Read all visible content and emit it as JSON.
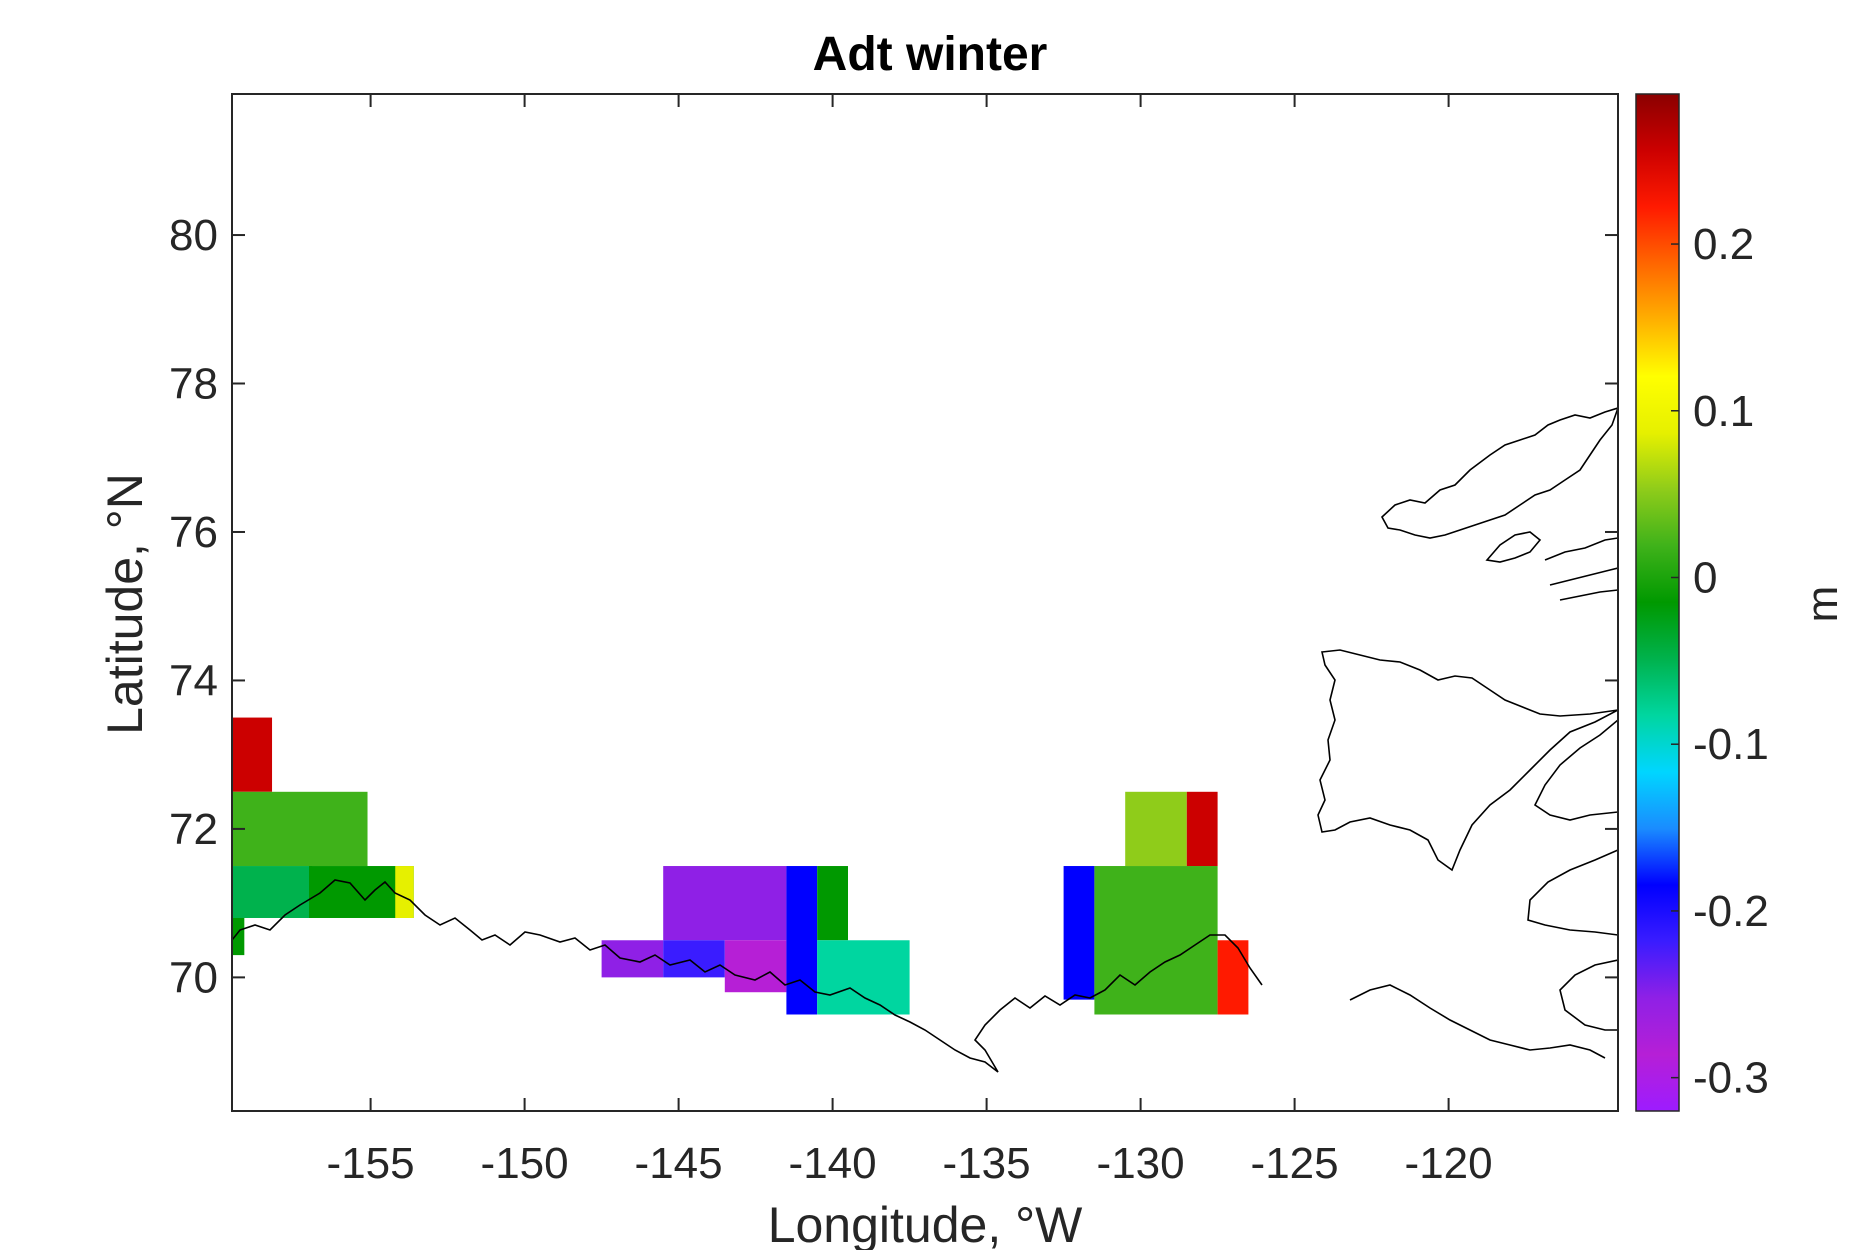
{
  "chart_data": {
    "type": "heatmap",
    "title": "Adt winter",
    "xlabel": "Longitude, °W",
    "ylabel": "Latitude, °N",
    "colorbar_label": "m",
    "xlim": [
      -159.5,
      -114.5
    ],
    "ylim": [
      68.2,
      81.9
    ],
    "xticks": [
      -155,
      -150,
      -145,
      -140,
      -135,
      -130,
      -125,
      -120
    ],
    "xtick_labels": [
      "-155",
      "-150",
      "-145",
      "-140",
      "-135",
      "-130",
      "-125",
      "-120"
    ],
    "yticks": [
      70,
      72,
      74,
      76,
      78,
      80
    ],
    "ytick_labels": [
      "70",
      "72",
      "74",
      "76",
      "78",
      "80"
    ],
    "clim": [
      -0.32,
      0.29
    ],
    "cticks": [
      -0.3,
      -0.2,
      -0.1,
      0,
      0.1,
      0.2
    ],
    "ctick_labels": [
      "-0.3",
      "-0.2",
      "-0.1",
      "0",
      "0.1",
      "0.2"
    ],
    "colormap": [
      "#9d1cff",
      "#b61fd6",
      "#8f20e6",
      "#3a1cff",
      "#0000ff",
      "#1a8cff",
      "#00d6ff",
      "#00d6a0",
      "#00b24d",
      "#009900",
      "#3fb21a",
      "#8fcc1a",
      "#e6f000",
      "#ffff00",
      "#ffb000",
      "#ff6600",
      "#ff1a00",
      "#cc0000",
      "#8b0000"
    ],
    "cells": [
      {
        "lon": -159.5,
        "lat": 72.5,
        "w": 1.3,
        "h": 1.0,
        "value": 0.27
      },
      {
        "lon": -159.5,
        "lat": 71.5,
        "w": 4.4,
        "h": 1.0,
        "value": 0.02
      },
      {
        "lon": -159.5,
        "lat": 70.8,
        "w": 2.6,
        "h": 0.7,
        "value": -0.04
      },
      {
        "lon": -157.0,
        "lat": 70.8,
        "w": 3.4,
        "h": 0.7,
        "value": 0.0
      },
      {
        "lon": -154.2,
        "lat": 70.8,
        "w": 0.6,
        "h": 0.7,
        "value": 0.07
      },
      {
        "lon": -159.5,
        "lat": 70.3,
        "w": 0.4,
        "h": 0.5,
        "value": 0.0
      },
      {
        "lon": -145.5,
        "lat": 70.5,
        "w": 4.0,
        "h": 1.0,
        "value": -0.25
      },
      {
        "lon": -147.5,
        "lat": 70.0,
        "w": 2.0,
        "h": 0.5,
        "value": -0.24
      },
      {
        "lon": -145.5,
        "lat": 70.0,
        "w": 2.0,
        "h": 0.5,
        "value": -0.23
      },
      {
        "lon": -143.5,
        "lat": 69.8,
        "w": 2.0,
        "h": 0.7,
        "value": -0.27
      },
      {
        "lon": -141.5,
        "lat": 69.5,
        "w": 1.0,
        "h": 2.0,
        "value": -0.18
      },
      {
        "lon": -140.5,
        "lat": 70.5,
        "w": 1.0,
        "h": 1.0,
        "value": -0.01
      },
      {
        "lon": -140.5,
        "lat": 69.5,
        "w": 3.0,
        "h": 1.0,
        "value": -0.08
      },
      {
        "lon": -132.5,
        "lat": 69.7,
        "w": 1.0,
        "h": 1.8,
        "value": -0.18
      },
      {
        "lon": -131.5,
        "lat": 69.5,
        "w": 4.0,
        "h": 2.0,
        "value": 0.02
      },
      {
        "lon": -130.5,
        "lat": 71.5,
        "w": 2.0,
        "h": 1.0,
        "value": 0.05
      },
      {
        "lon": -128.5,
        "lat": 71.5,
        "w": 1.0,
        "h": 1.0,
        "value": 0.27
      },
      {
        "lon": -127.5,
        "lat": 69.5,
        "w": 1.0,
        "h": 1.0,
        "value": 0.22
      }
    ]
  }
}
